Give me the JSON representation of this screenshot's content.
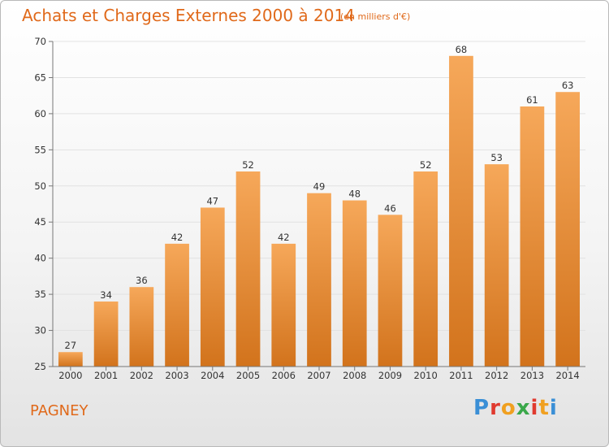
{
  "header": {
    "title": "Achats et Charges Externes 2000 à 2014",
    "subtitle": "(en milliers d'€)"
  },
  "footer": {
    "place": "PAGNEY",
    "logo_text": "Proxiti"
  },
  "colors": {
    "text_accent": "#e0691a",
    "bar_top": "#f6a85a",
    "bar_bottom": "#d2731c",
    "grid": "#e2e2e2",
    "axis": "#777777",
    "logo_letters": [
      "#3a8fd6",
      "#e03a2f",
      "#f0a020",
      "#3aa84a",
      "#e03a2f",
      "#f0a020",
      "#3a8fd6"
    ]
  },
  "chart_data": {
    "type": "bar",
    "title": "Achats et Charges Externes 2000 à 2014",
    "subtitle": "(en milliers d'€)",
    "categories": [
      "2000",
      "2001",
      "2002",
      "2003",
      "2004",
      "2005",
      "2006",
      "2007",
      "2008",
      "2009",
      "2010",
      "2011",
      "2012",
      "2013",
      "2014"
    ],
    "values": [
      27,
      34,
      36,
      42,
      47,
      52,
      42,
      49,
      48,
      46,
      52,
      68,
      53,
      61,
      63
    ],
    "ylim": [
      25,
      70
    ],
    "yticks": [
      25,
      30,
      35,
      40,
      45,
      50,
      55,
      60,
      65,
      70
    ],
    "grid": true,
    "legend": "none"
  }
}
